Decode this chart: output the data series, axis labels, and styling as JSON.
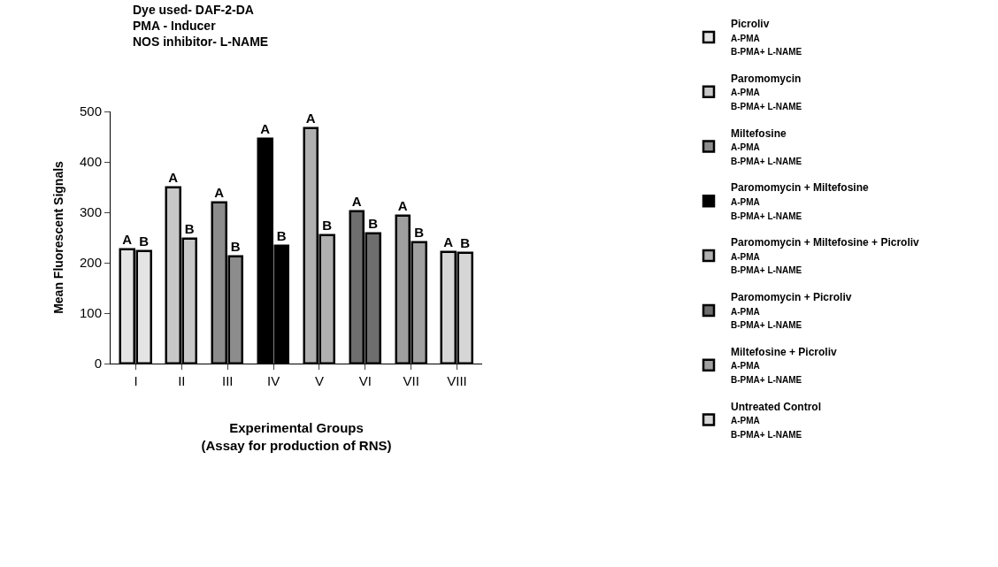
{
  "chart_data": {
    "type": "bar",
    "title": "Dye used- DAF-2-DA\nPMA - Inducer\nNOS inhibitor- L-NAME",
    "xlabel": "Experimental Groups\n(Assay for production of RNS)",
    "ylabel": "Mean Fluorescent Signals",
    "categories": [
      "I",
      "II",
      "III",
      "IV",
      "V",
      "VI",
      "VII",
      "VIII"
    ],
    "series": [
      {
        "name": "Picroliv\nA-PMA\nB-PMA+ L-NAME",
        "color": "#e4e4e4",
        "values": [
          226,
          null,
          null,
          null,
          null,
          null,
          null,
          null
        ],
        "value_labels": [
          "A",
          null,
          null,
          null,
          null,
          null,
          null,
          null
        ]
      },
      {
        "color": "#e4e4e4",
        "values": [
          223,
          null,
          null,
          null,
          null,
          null,
          null,
          null
        ],
        "value_labels": [
          "B",
          null,
          null,
          null,
          null,
          null,
          null,
          null
        ]
      },
      {
        "name": "Paromomycin\nA-PMA\nB-PMA+ L-NAME",
        "color": "#c8c8c8",
        "values": [
          null,
          349,
          null,
          null,
          null,
          null,
          null,
          null
        ],
        "value_labels": [
          null,
          "A",
          null,
          null,
          null,
          null,
          null,
          null
        ]
      },
      {
        "color": "#c8c8c8",
        "values": [
          null,
          247,
          null,
          null,
          null,
          null,
          null,
          null
        ],
        "value_labels": [
          null,
          "B",
          null,
          null,
          null,
          null,
          null,
          null
        ]
      },
      {
        "name": "Miltefosine\nA-PMA\nB-PMA+ L-NAME",
        "color": "#8c8c8c",
        "values": [
          null,
          null,
          319,
          null,
          null,
          null,
          null,
          null
        ],
        "value_labels": [
          null,
          null,
          "A",
          null,
          null,
          null,
          null,
          null
        ]
      },
      {
        "color": "#8c8c8c",
        "values": [
          null,
          null,
          213,
          null,
          null,
          null,
          null,
          null
        ],
        "value_labels": [
          null,
          null,
          "B",
          null,
          null,
          null,
          null,
          null
        ]
      },
      {
        "name": "Paromomycin + Miltefosine\nA-PMA\nB-PMA+ L-NAME",
        "color": "#000000",
        "values": [
          null,
          null,
          null,
          445,
          null,
          null,
          null,
          null
        ],
        "value_labels": [
          null,
          null,
          null,
          "A",
          null,
          null,
          null,
          null
        ]
      },
      {
        "color": "#000000",
        "values": [
          null,
          null,
          null,
          234,
          null,
          null,
          null,
          null
        ],
        "value_labels": [
          null,
          null,
          null,
          "B",
          null,
          null,
          null,
          null
        ]
      },
      {
        "name": "Paromomycin + Miltefosine + Picroliv\nA-PMA\nB-PMA+ L-NAME",
        "color": "#b0b0b0",
        "values": [
          null,
          null,
          null,
          null,
          467,
          null,
          null,
          null
        ],
        "value_labels": [
          null,
          null,
          null,
          null,
          "A",
          null,
          null,
          null
        ]
      },
      {
        "color": "#b0b0b0",
        "values": [
          null,
          null,
          null,
          null,
          254,
          null,
          null,
          null
        ],
        "value_labels": [
          null,
          null,
          null,
          null,
          "B",
          null,
          null,
          null
        ]
      },
      {
        "name": "Paromomycin + Picroliv\nA-PMA\nB-PMA+ L-NAME",
        "color": "#6e6e6e",
        "values": [
          null,
          null,
          null,
          null,
          null,
          301,
          null,
          null
        ],
        "value_labels": [
          null,
          null,
          null,
          null,
          null,
          "A",
          null,
          null
        ]
      },
      {
        "color": "#6e6e6e",
        "values": [
          null,
          null,
          null,
          null,
          null,
          258,
          null,
          null
        ],
        "value_labels": [
          null,
          null,
          null,
          null,
          null,
          "B",
          null,
          null
        ]
      },
      {
        "name": "Miltefosine + Picroliv\nA-PMA\nB-PMA+ L-NAME",
        "color": "#a0a0a0",
        "values": [
          null,
          null,
          null,
          null,
          null,
          null,
          293,
          null
        ],
        "value_labels": [
          null,
          null,
          null,
          null,
          null,
          null,
          "A",
          null
        ]
      },
      {
        "color": "#a0a0a0",
        "values": [
          null,
          null,
          null,
          null,
          null,
          null,
          240,
          null
        ],
        "value_labels": [
          null,
          null,
          null,
          null,
          null,
          null,
          "B",
          null
        ]
      },
      {
        "name": "Untreated Control\nA-PMA\nB-PMA+ L-NAME",
        "color": "#d6d6d6",
        "values": [
          null,
          null,
          null,
          null,
          null,
          null,
          null,
          221
        ],
        "value_labels": [
          null,
          null,
          null,
          null,
          null,
          null,
          null,
          "A"
        ]
      },
      {
        "color": "#d6d6d6",
        "values": [
          null,
          null,
          null,
          null,
          null,
          null,
          null,
          220
        ],
        "value_labels": [
          null,
          null,
          null,
          null,
          null,
          null,
          null,
          "B"
        ]
      }
    ],
    "ylim": [
      0,
      500
    ],
    "yticks": [
      0,
      100,
      200,
      300,
      400,
      500
    ],
    "legend": "right"
  }
}
